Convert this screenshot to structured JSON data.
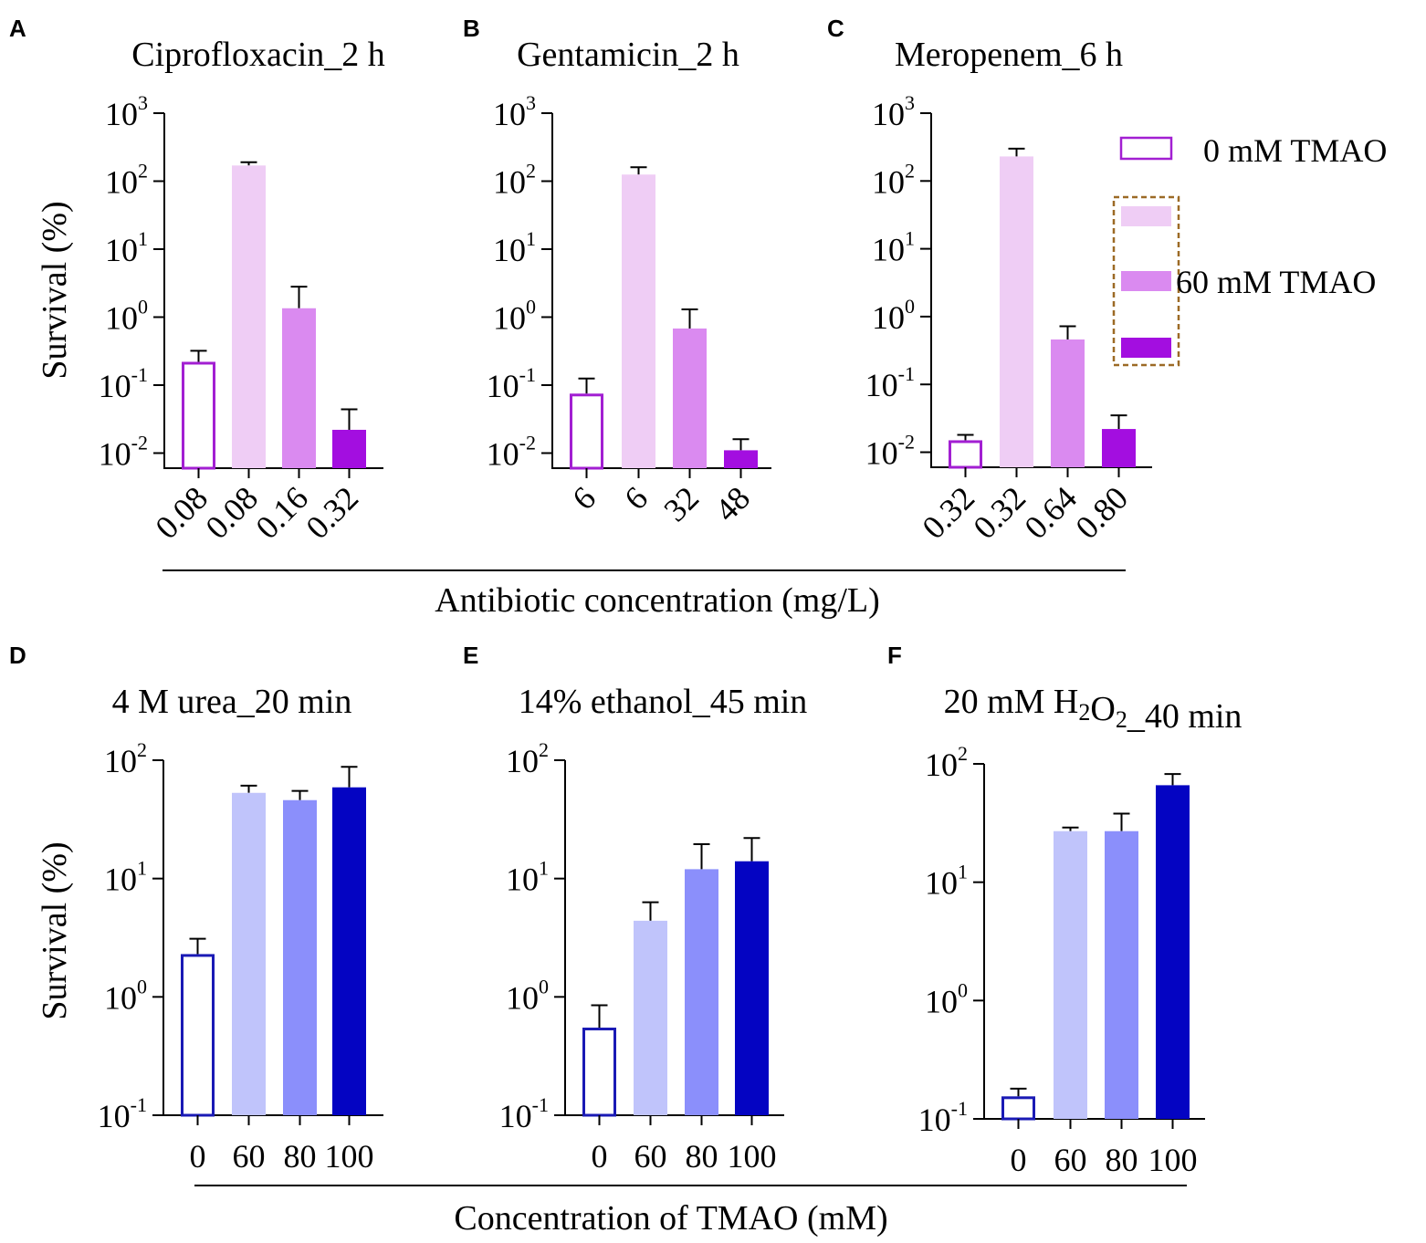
{
  "figure": {
    "bottom_label_top": "Antibiotic concentration (mg/L)",
    "bottom_label_bottom": "Concentration of TMAO (mM)",
    "y_axis_label": "Survival (%)",
    "legend": {
      "label_0": "0 mM TMAO",
      "label_60": "60 mM TMAO",
      "swatch_colors": [
        "#ffffff",
        "#efcdf5",
        "#da8af0",
        "#a30ee0"
      ],
      "outline_color": "#a21fd2",
      "box_color": "#9c6a26"
    }
  },
  "chart_data": [
    {
      "panel": "A",
      "type": "bar",
      "yscale": "log",
      "title": "Ciprofloxacin_2 h",
      "ylabel": "Survival (%)",
      "xlabel": "Antibiotic concentration (mg/L)",
      "ylim": [
        0.006,
        1000
      ],
      "yticks": [
        {
          "base": "10",
          "exp": "3",
          "value": 1000
        },
        {
          "base": "10",
          "exp": "2",
          "value": 100
        },
        {
          "base": "10",
          "exp": "1",
          "value": 10
        },
        {
          "base": "10",
          "exp": "0",
          "value": 1
        },
        {
          "base": "10",
          "exp": "-1",
          "value": 0.1
        },
        {
          "base": "10",
          "exp": "-2",
          "value": 0.01
        }
      ],
      "categories": [
        "0.08",
        "0.08",
        "0.16",
        "0.32"
      ],
      "values": [
        0.22,
        170,
        1.35,
        0.022
      ],
      "errors": [
        0.32,
        190,
        2.8,
        0.044
      ],
      "colors": [
        "#ffffff",
        "#efcdf5",
        "#da8af0",
        "#a30ee0"
      ],
      "tmao_mM": [
        0,
        60,
        60,
        60
      ]
    },
    {
      "panel": "B",
      "type": "bar",
      "yscale": "log",
      "title": "Gentamicin_2 h",
      "ylabel": "Survival (%)",
      "xlabel": "Antibiotic concentration (mg/L)",
      "ylim": [
        0.006,
        1000
      ],
      "yticks": [
        {
          "base": "10",
          "exp": "3",
          "value": 1000
        },
        {
          "base": "10",
          "exp": "2",
          "value": 100
        },
        {
          "base": "10",
          "exp": "1",
          "value": 10
        },
        {
          "base": "10",
          "exp": "0",
          "value": 1
        },
        {
          "base": "10",
          "exp": "-1",
          "value": 0.1
        },
        {
          "base": "10",
          "exp": "-2",
          "value": 0.01
        }
      ],
      "categories": [
        "6",
        "6",
        "32",
        "48"
      ],
      "values": [
        0.075,
        125,
        0.68,
        0.011
      ],
      "errors": [
        0.125,
        160,
        1.3,
        0.016
      ],
      "colors": [
        "#ffffff",
        "#efcdf5",
        "#da8af0",
        "#a30ee0"
      ],
      "tmao_mM": [
        0,
        60,
        60,
        60
      ]
    },
    {
      "panel": "C",
      "type": "bar",
      "yscale": "log",
      "title": "Meropenem_6 h",
      "ylabel": "Survival (%)",
      "xlabel": "Antibiotic concentration (mg/L)",
      "ylim": [
        0.006,
        1000
      ],
      "yticks": [
        {
          "base": "10",
          "exp": "3",
          "value": 1000
        },
        {
          "base": "10",
          "exp": "2",
          "value": 100
        },
        {
          "base": "10",
          "exp": "1",
          "value": 10
        },
        {
          "base": "10",
          "exp": "0",
          "value": 1
        },
        {
          "base": "10",
          "exp": "-1",
          "value": 0.1
        },
        {
          "base": "10",
          "exp": "-2",
          "value": 0.01
        }
      ],
      "categories": [
        "0.32",
        "0.32",
        "0.64",
        "0.80"
      ],
      "values": [
        0.015,
        230,
        0.46,
        0.022
      ],
      "errors": [
        0.018,
        300,
        0.72,
        0.035
      ],
      "colors": [
        "#ffffff",
        "#efcdf5",
        "#da8af0",
        "#a30ee0"
      ],
      "tmao_mM": [
        0,
        60,
        60,
        60
      ]
    },
    {
      "panel": "D",
      "type": "bar",
      "yscale": "log",
      "title": "4 M urea_20 min",
      "ylabel": "Survival (%)",
      "xlabel": "Concentration of TMAO (mM)",
      "ylim": [
        0.1,
        100
      ],
      "yticks": [
        {
          "base": "10",
          "exp": "2",
          "value": 100
        },
        {
          "base": "10",
          "exp": "1",
          "value": 10
        },
        {
          "base": "10",
          "exp": "0",
          "value": 1
        },
        {
          "base": "10",
          "exp": "-1",
          "value": 0.1
        }
      ],
      "categories": [
        "0",
        "60",
        "80",
        "100"
      ],
      "values": [
        2.3,
        53,
        46,
        59
      ],
      "errors": [
        3.1,
        61,
        55,
        88
      ],
      "colors": [
        "#ffffff",
        "#c0c4fb",
        "#8b8ffb",
        "#0404c2"
      ]
    },
    {
      "panel": "E",
      "type": "bar",
      "yscale": "log",
      "title": "14% ethanol_45 min",
      "ylabel": "Survival (%)",
      "xlabel": "Concentration of TMAO (mM)",
      "ylim": [
        0.1,
        100
      ],
      "yticks": [
        {
          "base": "10",
          "exp": "2",
          "value": 100
        },
        {
          "base": "10",
          "exp": "1",
          "value": 10
        },
        {
          "base": "10",
          "exp": "0",
          "value": 1
        },
        {
          "base": "10",
          "exp": "-1",
          "value": 0.1
        }
      ],
      "categories": [
        "0",
        "60",
        "80",
        "100"
      ],
      "values": [
        0.55,
        4.4,
        12,
        14
      ],
      "errors": [
        0.85,
        6.3,
        19.5,
        22
      ],
      "colors": [
        "#ffffff",
        "#c0c4fb",
        "#8b8ffb",
        "#0404c2"
      ]
    },
    {
      "panel": "F",
      "type": "bar",
      "yscale": "log",
      "title": "20 mM H2O2_40 min",
      "title_parts": [
        {
          "text": "20 mM H",
          "sub": false
        },
        {
          "text": "2",
          "sub": true
        },
        {
          "text": "O",
          "sub": false
        },
        {
          "text": "2",
          "sub": true
        },
        {
          "text": "_40 min",
          "sub": false
        }
      ],
      "ylabel": "Survival (%)",
      "xlabel": "Concentration of TMAO (mM)",
      "ylim": [
        0.1,
        100
      ],
      "yticks": [
        {
          "base": "10",
          "exp": "2",
          "value": 100
        },
        {
          "base": "10",
          "exp": "1",
          "value": 10
        },
        {
          "base": "10",
          "exp": "0",
          "value": 1
        },
        {
          "base": "10",
          "exp": "-1",
          "value": 0.1
        }
      ],
      "categories": [
        "0",
        "60",
        "80",
        "100"
      ],
      "values": [
        0.155,
        27,
        27,
        66
      ],
      "errors": [
        0.18,
        29,
        38,
        82
      ],
      "colors": [
        "#ffffff",
        "#c0c4fb",
        "#8b8ffb",
        "#0404c2"
      ]
    }
  ]
}
